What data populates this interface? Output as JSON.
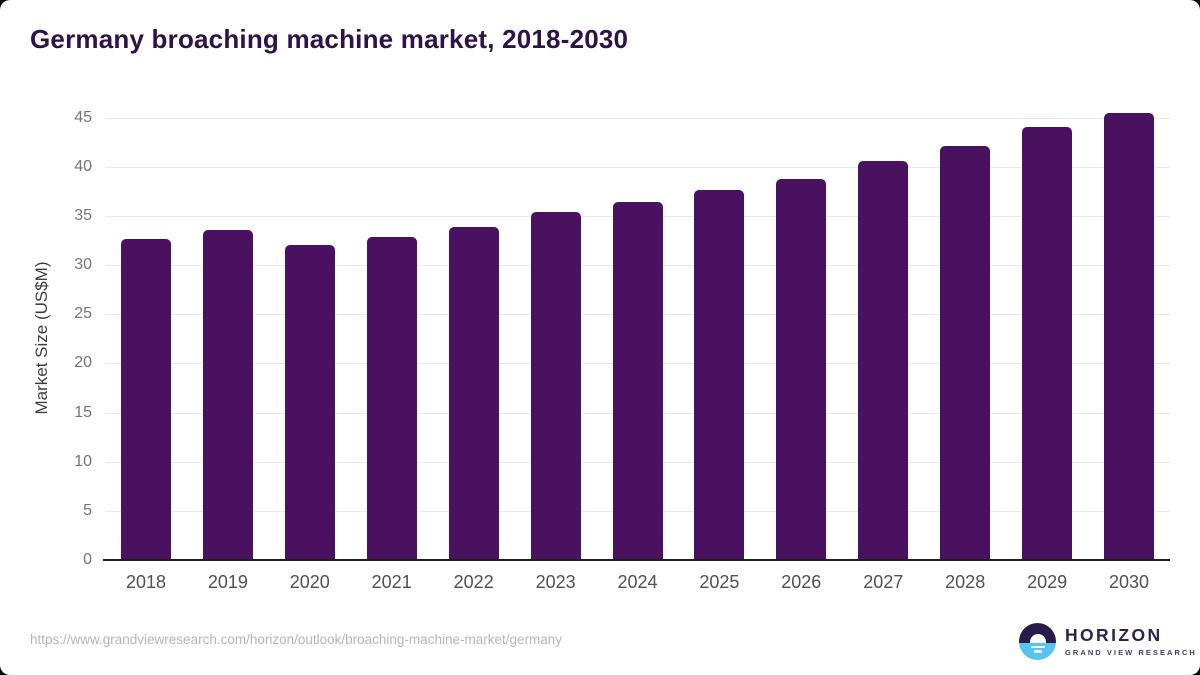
{
  "title": "Germany broaching machine market, 2018-2030",
  "chart_data": {
    "type": "bar",
    "title": "Germany broaching machine market, 2018-2030",
    "categories": [
      "2018",
      "2019",
      "2020",
      "2021",
      "2022",
      "2023",
      "2024",
      "2025",
      "2026",
      "2027",
      "2028",
      "2029",
      "2030"
    ],
    "values": [
      32.6,
      33.6,
      32.0,
      32.9,
      33.9,
      35.4,
      36.4,
      37.6,
      38.8,
      40.6,
      42.1,
      44.0,
      45.5
    ],
    "xlabel": "",
    "ylabel": "Market Size (US$M)",
    "ylim": [
      0,
      45
    ],
    "yticks": [
      0,
      5,
      10,
      15,
      20,
      25,
      30,
      35,
      40,
      45
    ],
    "grid": true,
    "legend": "none",
    "bar_color": "#4a1161"
  },
  "colors": {
    "title": "#2e1248",
    "bar": "#4a1161",
    "gridline": "#e9e9e9",
    "axis_line": "#1f1f1f",
    "tick_text": "#757575",
    "logo_dark": "#2b1b4a",
    "logo_blue": "#56c3f0"
  },
  "footer": {
    "source_url": "https://www.grandviewresearch.com/horizon/outlook/broaching-machine-market/germany",
    "logo": {
      "name": "HORIZON",
      "subtitle": "GRAND VIEW RESEARCH"
    }
  }
}
